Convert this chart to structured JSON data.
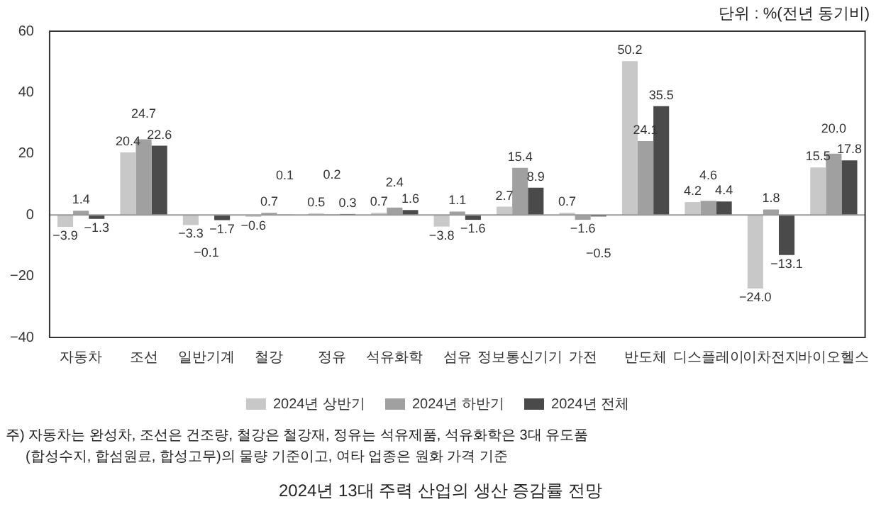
{
  "chart_data": {
    "type": "bar",
    "title": "2024년 13대 주력 산업의 생산 증감률 전망",
    "annotations": [
      "단위 : %(전년 동기비)",
      "주) 자동차는 완성차, 조선은 건조량, 철강은 철강재, 정유는 석유제품, 석유화학은 3대 유도품",
      "(합성수지, 합섬원료, 합성고무)의 물량 기준이고, 여타 업종은 원화 가격 기준"
    ],
    "categories": [
      "자동차",
      "조선",
      "일반기계",
      "철강",
      "정유",
      "석유화학",
      "섬유",
      "정보통신기기",
      "가전",
      "반도체",
      "디스플레이",
      "이차전지",
      "바이오헬스"
    ],
    "series": [
      {
        "name": "2024년 상반기",
        "color": "#c8c8c8",
        "values": [
          -3.9,
          20.4,
          -3.3,
          -0.6,
          0.5,
          0.7,
          -3.8,
          2.7,
          0.7,
          50.2,
          4.2,
          -24,
          15.5
        ],
        "value_labels": [
          "−3.9",
          "20.4",
          "−3.3",
          "−0.6",
          "0.5",
          "0.7",
          "−3.8",
          "2.7",
          "0.7",
          "50.2",
          "4.2",
          "−24.0",
          "15.5"
        ]
      },
      {
        "name": "2024년 하반기",
        "color": "#a0a0a0",
        "values": [
          1.4,
          24.7,
          -0.1,
          0.7,
          0.2,
          2.4,
          1.1,
          15.4,
          -1.6,
          24.1,
          4.6,
          1.8,
          20
        ],
        "value_labels": [
          "1.4",
          "24.7",
          "−0.1",
          "0.7",
          "0.2",
          "2.4",
          "1.1",
          "15.4",
          "−1.6",
          "24.1",
          "4.6",
          "1.8",
          "20.0"
        ]
      },
      {
        "name": "2024년 전체",
        "color": "#4a4a4a",
        "values": [
          -1.3,
          22.6,
          -1.7,
          0.1,
          0.3,
          1.6,
          -1.6,
          8.9,
          -0.5,
          35.5,
          4.4,
          -13.1,
          17.8
        ],
        "value_labels": [
          "−1.3",
          "22.6",
          "−1.7",
          "0.1",
          "0.3",
          "1.6",
          "−1.6",
          "8.9",
          "−0.5",
          "35.5",
          "4.4",
          "−13.1",
          "17.8"
        ]
      }
    ],
    "ylim": [
      -40,
      60
    ],
    "yticks": [
      -40,
      -20,
      0,
      20,
      40,
      60
    ],
    "legend": "bottom"
  }
}
